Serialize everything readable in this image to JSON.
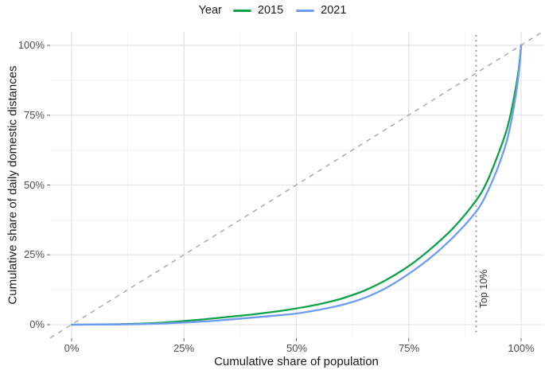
{
  "legend": {
    "title": "Year",
    "items": [
      {
        "label": "2015",
        "color": "#0fa24b"
      },
      {
        "label": "2021",
        "color": "#6e9bf4"
      }
    ]
  },
  "chart_data": {
    "type": "line",
    "title": "",
    "xlabel": "Cumulative share of population",
    "ylabel": "Cumulative share of daily domestic distances",
    "x_ticks": [
      "0%",
      "25%",
      "50%",
      "75%",
      "100%"
    ],
    "y_ticks": [
      "0%",
      "25%",
      "50%",
      "75%",
      "100%"
    ],
    "x_tick_values": [
      0,
      25,
      50,
      75,
      100
    ],
    "y_tick_values": [
      0,
      25,
      50,
      75,
      100
    ],
    "minor_tick_values": [
      12.5,
      37.5,
      62.5,
      87.5
    ],
    "xlim": [
      0,
      100
    ],
    "ylim": [
      0,
      100
    ],
    "grid": "major+minor",
    "legend_position": "top",
    "colors": {
      "grid_major": "#e4e4e4",
      "grid_minor": "#f2f2f2",
      "diagonal_line": "#aaaaaa",
      "annotation_line": "#8a8a8a"
    },
    "reference_line": {
      "type": "diagonal-dashed-equality",
      "from": [
        0,
        0
      ],
      "to": [
        100,
        100
      ]
    },
    "annotations": [
      {
        "label": "Top 10%",
        "x": 90,
        "style": "vertical-dotted-line"
      }
    ],
    "series": [
      {
        "name": "2015",
        "color": "#0fa24b",
        "points": [
          [
            0,
            0
          ],
          [
            5,
            0.05
          ],
          [
            10,
            0.15
          ],
          [
            15,
            0.35
          ],
          [
            20,
            0.7
          ],
          [
            25,
            1.3
          ],
          [
            30,
            2.0
          ],
          [
            35,
            2.8
          ],
          [
            40,
            3.6
          ],
          [
            45,
            4.6
          ],
          [
            50,
            5.8
          ],
          [
            55,
            7.3
          ],
          [
            60,
            9.3
          ],
          [
            65,
            12.1
          ],
          [
            70,
            16.0
          ],
          [
            75,
            21.0
          ],
          [
            80,
            27.3
          ],
          [
            85,
            34.8
          ],
          [
            90,
            44.5
          ],
          [
            92.5,
            51.5
          ],
          [
            95,
            61.5
          ],
          [
            97,
            71.0
          ],
          [
            98.5,
            82.0
          ],
          [
            99.5,
            92.0
          ],
          [
            100,
            100
          ]
        ]
      },
      {
        "name": "2021",
        "color": "#6e9bf4",
        "points": [
          [
            0,
            0
          ],
          [
            5,
            0.02
          ],
          [
            10,
            0.07
          ],
          [
            15,
            0.18
          ],
          [
            20,
            0.4
          ],
          [
            25,
            0.75
          ],
          [
            30,
            1.2
          ],
          [
            35,
            1.8
          ],
          [
            40,
            2.5
          ],
          [
            45,
            3.2
          ],
          [
            50,
            4.0
          ],
          [
            55,
            5.3
          ],
          [
            60,
            7.0
          ],
          [
            65,
            9.5
          ],
          [
            70,
            13.2
          ],
          [
            75,
            18.2
          ],
          [
            80,
            24.2
          ],
          [
            85,
            31.5
          ],
          [
            90,
            40.5
          ],
          [
            92.5,
            47.5
          ],
          [
            95,
            57.0
          ],
          [
            97,
            67.0
          ],
          [
            98.5,
            79.0
          ],
          [
            99.5,
            90.5
          ],
          [
            100,
            100
          ]
        ]
      }
    ]
  }
}
